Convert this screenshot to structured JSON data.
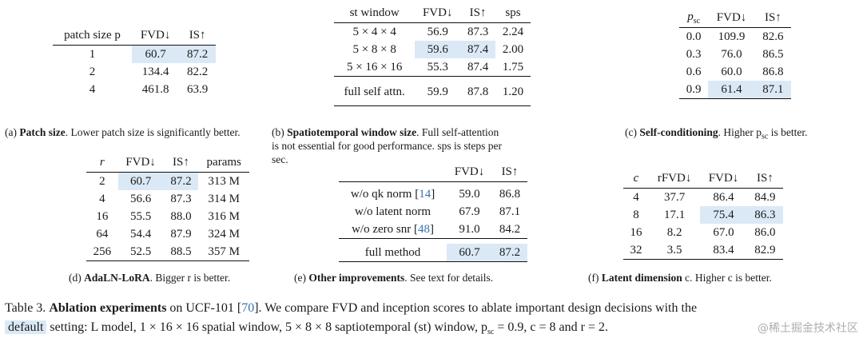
{
  "table_a": {
    "headers": [
      "patch size p",
      "FVD↓",
      "IS↑"
    ],
    "rows": [
      [
        "1",
        "60.7",
        "87.2"
      ],
      [
        "2",
        "134.4",
        "82.2"
      ],
      [
        "4",
        "461.8",
        "63.9"
      ]
    ],
    "caption_label": "(a)",
    "caption_title": "Patch size",
    "caption_text": ". Lower patch size is significantly better."
  },
  "table_b": {
    "headers": [
      "st window",
      "FVD↓",
      "IS↑",
      "sps"
    ],
    "rows": [
      [
        "5 × 4 × 4",
        "56.9",
        "87.3",
        "2.24"
      ],
      [
        "5 × 8 × 8",
        "59.6",
        "87.4",
        "2.00"
      ],
      [
        "5 × 16 × 16",
        "55.3",
        "87.4",
        "1.75"
      ]
    ],
    "final_row": [
      "full self attn.",
      "59.9",
      "87.8",
      "1.20"
    ],
    "caption_label": "(b)",
    "caption_title": "Spatiotemporal window size",
    "caption_text": ". Full self-attention is not essential for good performance. sps is steps per sec."
  },
  "table_c": {
    "headers": [
      "p",
      "sc",
      "FVD↓",
      "IS↑"
    ],
    "rows": [
      [
        "0.0",
        "109.9",
        "82.6"
      ],
      [
        "0.3",
        "76.0",
        "86.5"
      ],
      [
        "0.6",
        "60.0",
        "86.8"
      ],
      [
        "0.9",
        "61.4",
        "87.1"
      ]
    ],
    "caption_label": "(c)",
    "caption_title": "Self-conditioning",
    "caption_text_1": ". Higher p",
    "caption_sub": "sc",
    "caption_text_2": " is better."
  },
  "table_d": {
    "headers": [
      "r",
      "FVD↓",
      "IS↑",
      "params"
    ],
    "rows": [
      [
        "2",
        "60.7",
        "87.2",
        "313 M"
      ],
      [
        "4",
        "56.6",
        "87.3",
        "314 M"
      ],
      [
        "16",
        "55.5",
        "88.0",
        "316 M"
      ],
      [
        "64",
        "54.4",
        "87.9",
        "324 M"
      ],
      [
        "256",
        "52.5",
        "88.5",
        "357 M"
      ]
    ],
    "caption_label": "(d)",
    "caption_title": "AdaLN-LoRA",
    "caption_text": ". Bigger r is better."
  },
  "table_e": {
    "headers": [
      "",
      "FVD↓",
      "IS↑"
    ],
    "rows": [
      {
        "label": "w/o qk norm [",
        "ref": "14",
        "close": "]",
        "fvd": "59.0",
        "is": "86.8"
      },
      {
        "label": "w/o latent norm",
        "ref": "",
        "close": "",
        "fvd": "67.9",
        "is": "87.1"
      },
      {
        "label": "w/o zero snr [",
        "ref": "48",
        "close": "]",
        "fvd": "91.0",
        "is": "84.2"
      }
    ],
    "final_row": [
      "full method",
      "60.7",
      "87.2"
    ],
    "caption_label": "(e)",
    "caption_title": "Other improvements",
    "caption_text": ". See text for details."
  },
  "table_f": {
    "headers": [
      "c",
      "rFVD↓",
      "FVD↓",
      "IS↑"
    ],
    "rows": [
      [
        "4",
        "37.7",
        "86.4",
        "84.9"
      ],
      [
        "8",
        "17.1",
        "75.4",
        "86.3"
      ],
      [
        "16",
        "8.2",
        "67.0",
        "86.0"
      ],
      [
        "32",
        "3.5",
        "83.4",
        "82.9"
      ]
    ],
    "caption_label": "(f)",
    "caption_title": "Latent dimension",
    "caption_text": " c. Higher c is better."
  },
  "main_caption": {
    "prefix": "Table 3. ",
    "title": "Ablation experiments",
    "text_1": " on UCF-101 [",
    "ref": "70",
    "text_2": "]. We compare FVD and inception scores to ablate important design decisions with the",
    "default_label": "default",
    "text_3": " setting: L model, 1 × 16 × 16 spatial window, 5 × 8 × 8 saptiotemporal (st) window, p",
    "sub": "sc",
    "text_4": " = 0.9, c = 8 and r = 2."
  },
  "watermark": "@稀土掘金技术社区"
}
